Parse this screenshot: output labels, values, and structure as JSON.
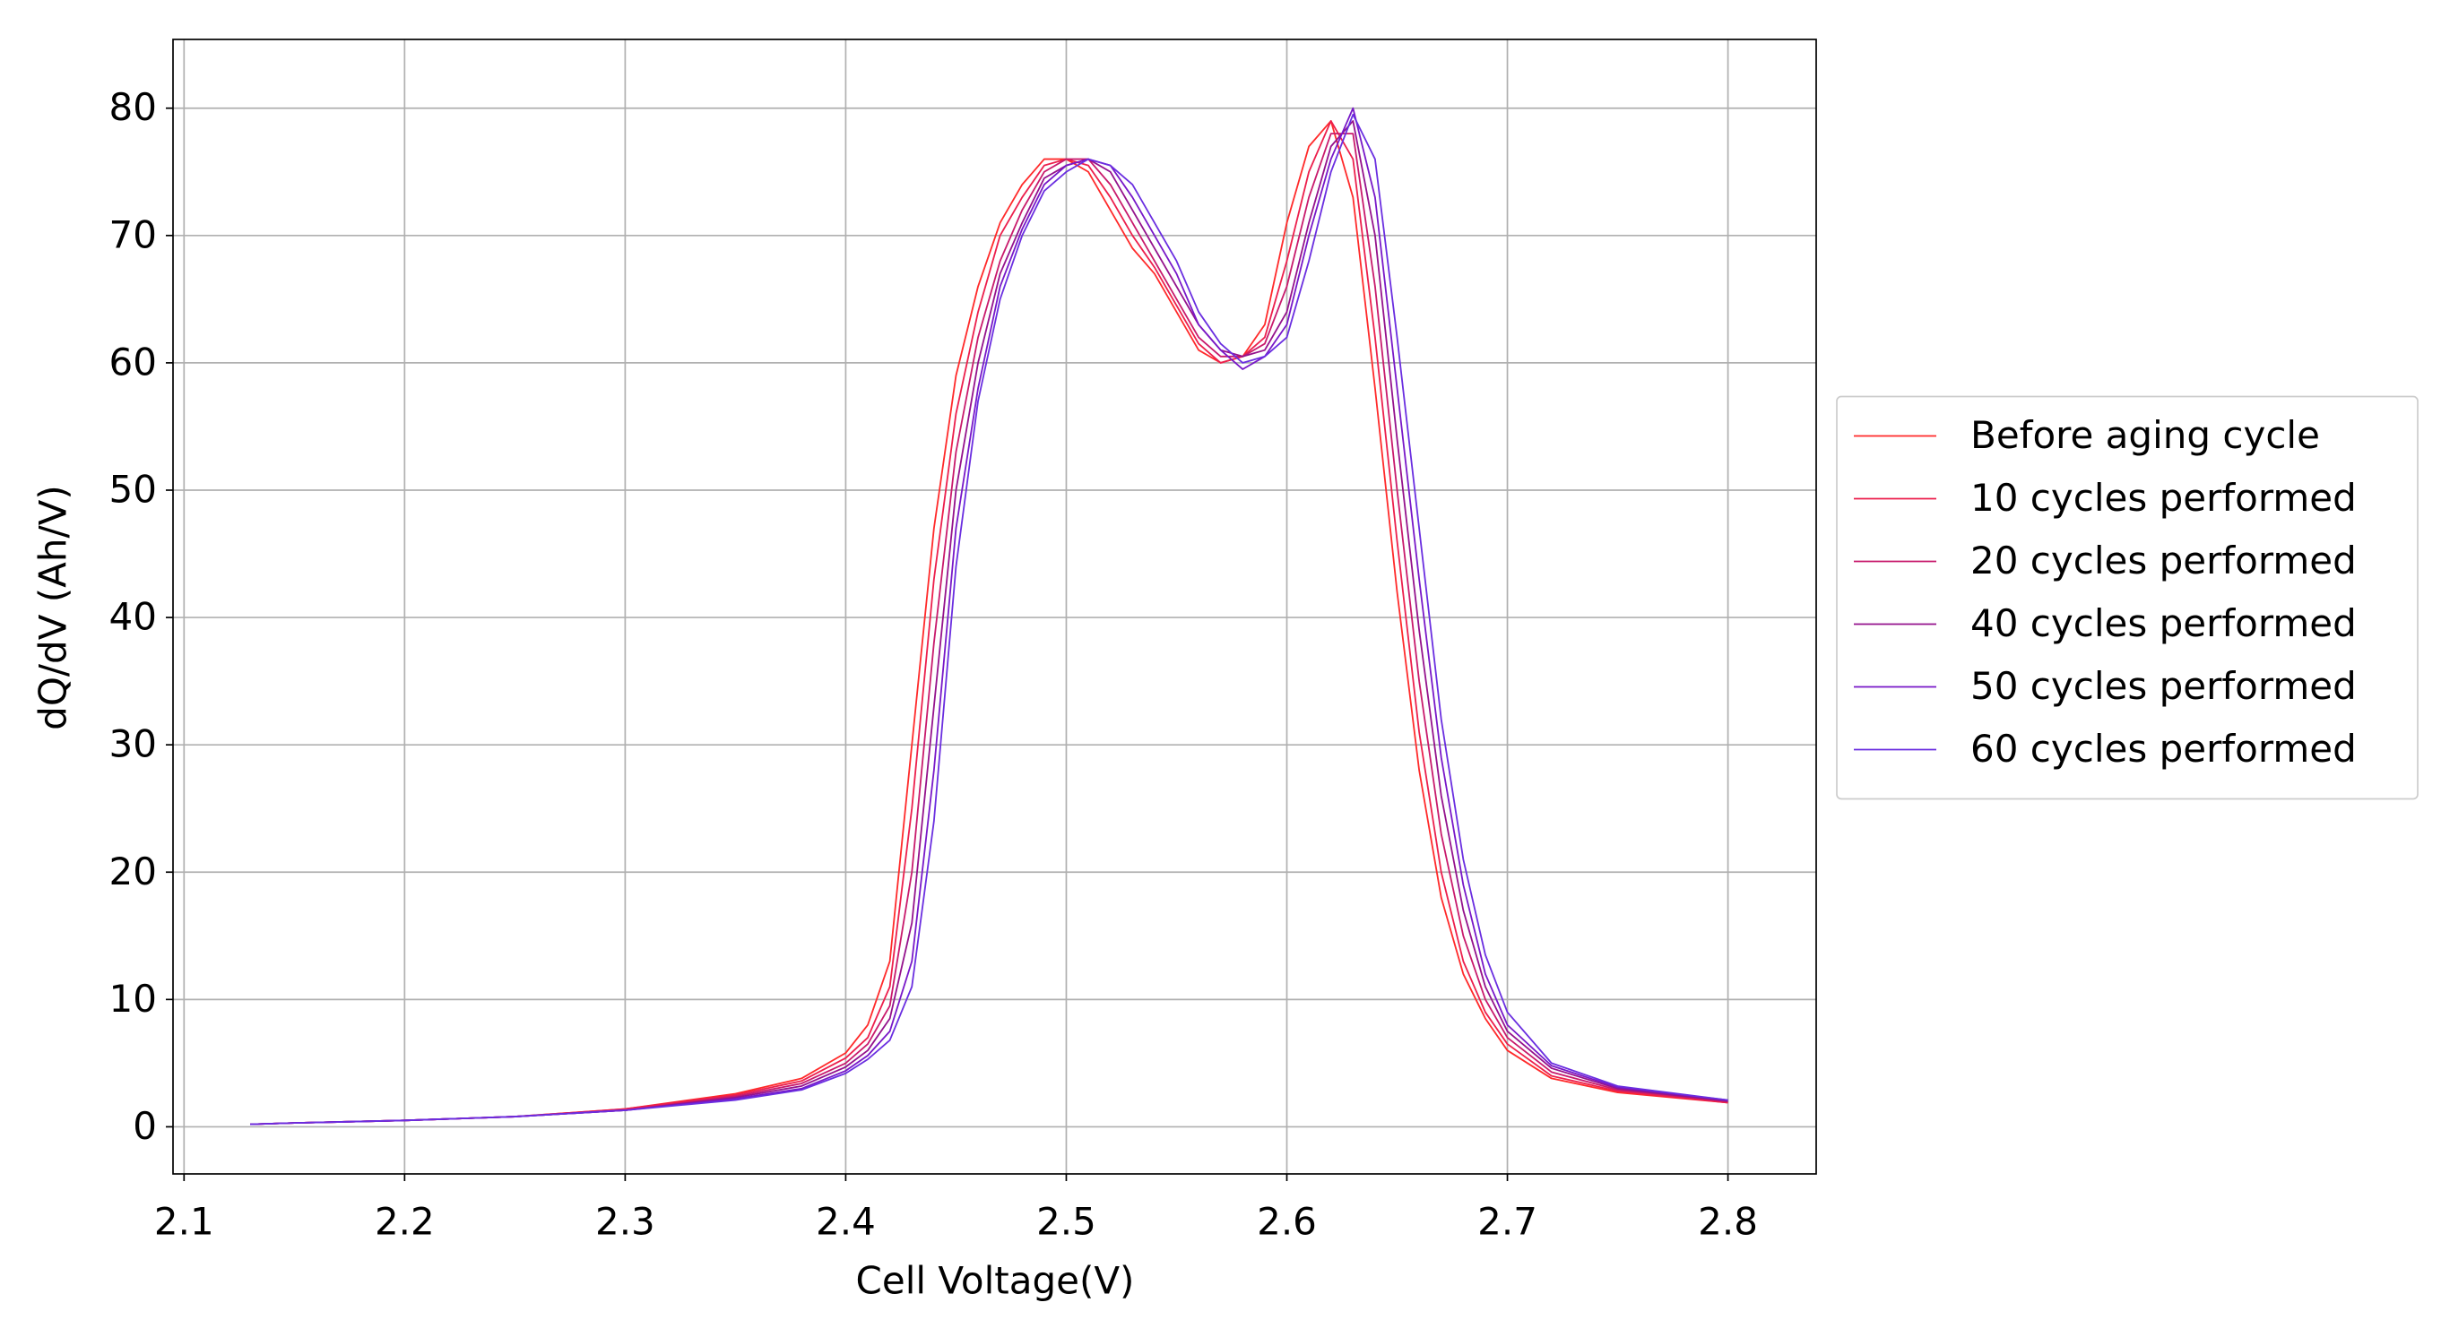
{
  "chart_data": {
    "type": "line",
    "x_label": "Cell Voltage(V)",
    "y_label": "dQ/dV (Ah/V)",
    "x": [
      2.13,
      2.15,
      2.2,
      2.25,
      2.3,
      2.35,
      2.38,
      2.4,
      2.41,
      2.42,
      2.43,
      2.44,
      2.45,
      2.46,
      2.47,
      2.48,
      2.49,
      2.5,
      2.51,
      2.52,
      2.53,
      2.54,
      2.55,
      2.56,
      2.57,
      2.58,
      2.59,
      2.6,
      2.61,
      2.62,
      2.63,
      2.64,
      2.65,
      2.66,
      2.67,
      2.68,
      2.69,
      2.7,
      2.72,
      2.75,
      2.8
    ],
    "series": [
      {
        "name": "Before aging cycle",
        "color": "#ff2a2a",
        "values": [
          0.2,
          0.3,
          0.5,
          0.8,
          1.4,
          2.6,
          3.8,
          5.8,
          8,
          13,
          30,
          47,
          59,
          66,
          71,
          74,
          76,
          76,
          75,
          72,
          69,
          67,
          64,
          61,
          60,
          60.5,
          63,
          71,
          77,
          79,
          73,
          58,
          42,
          28,
          18,
          12,
          8.5,
          6,
          3.8,
          2.7,
          1.9
        ]
      },
      {
        "name": "10 cycles performed",
        "color": "#ec1f4c",
        "values": [
          0.2,
          0.3,
          0.5,
          0.8,
          1.4,
          2.5,
          3.6,
          5.4,
          7,
          11,
          25,
          43,
          56,
          64,
          70,
          73,
          75.5,
          76,
          75.5,
          73,
          70,
          67.5,
          64.5,
          61.5,
          60,
          60.5,
          62,
          68,
          75,
          79,
          76,
          62,
          46,
          31,
          20,
          13,
          9,
          6.5,
          4,
          2.8,
          1.9
        ]
      },
      {
        "name": "20 cycles performed",
        "color": "#c81a6c",
        "values": [
          0.2,
          0.3,
          0.5,
          0.8,
          1.3,
          2.4,
          3.4,
          5,
          6.5,
          9.5,
          20,
          38,
          53,
          62,
          68,
          72,
          75,
          76,
          76,
          74,
          71,
          68,
          65,
          62,
          60.5,
          60.5,
          61.5,
          66,
          73,
          78,
          78,
          66,
          50,
          35,
          23,
          15,
          10,
          7,
          4.3,
          2.9,
          2.0
        ]
      },
      {
        "name": "40 cycles performed",
        "color": "#94128c",
        "values": [
          0.2,
          0.3,
          0.5,
          0.8,
          1.3,
          2.3,
          3.2,
          4.7,
          6,
          8.5,
          16,
          33,
          50,
          60,
          67,
          71,
          74.5,
          75.5,
          76,
          75,
          72,
          69,
          66,
          63,
          61,
          60.5,
          61,
          64,
          71,
          77,
          79,
          70,
          54,
          39,
          26,
          17,
          11,
          7.5,
          4.6,
          3,
          2.0
        ]
      },
      {
        "name": "50 cycles performed",
        "color": "#7818c8",
        "values": [
          0.2,
          0.3,
          0.5,
          0.8,
          1.3,
          2.2,
          3,
          4.4,
          5.6,
          7.5,
          13,
          28,
          47,
          58,
          66,
          70.5,
          74,
          75.5,
          76,
          75.5,
          73,
          70,
          67,
          63,
          61,
          59.5,
          60.5,
          63,
          70,
          76,
          80,
          73,
          58,
          43,
          29,
          19,
          12,
          8,
          4.8,
          3.1,
          2.1
        ]
      },
      {
        "name": "60 cycles performed",
        "color": "#6a2ee0",
        "values": [
          0.2,
          0.3,
          0.5,
          0.8,
          1.3,
          2.1,
          2.9,
          4.2,
          5.3,
          6.8,
          11,
          24,
          44,
          57,
          65,
          70,
          73.5,
          75,
          76,
          75.5,
          74,
          71,
          68,
          64,
          61.5,
          60,
          60.5,
          62,
          68,
          75,
          79.5,
          76,
          62,
          47,
          32,
          21,
          13.5,
          9,
          5,
          3.2,
          2.1
        ]
      }
    ],
    "xlim": [
      2.095,
      2.84
    ],
    "ylim": [
      -3.7,
      85.4
    ],
    "xticks": [
      2.1,
      2.2,
      2.3,
      2.4,
      2.5,
      2.6,
      2.7,
      2.8
    ],
    "yticks": [
      0,
      10,
      20,
      30,
      40,
      50,
      60,
      70,
      80
    ],
    "grid": true,
    "legend": "right"
  }
}
